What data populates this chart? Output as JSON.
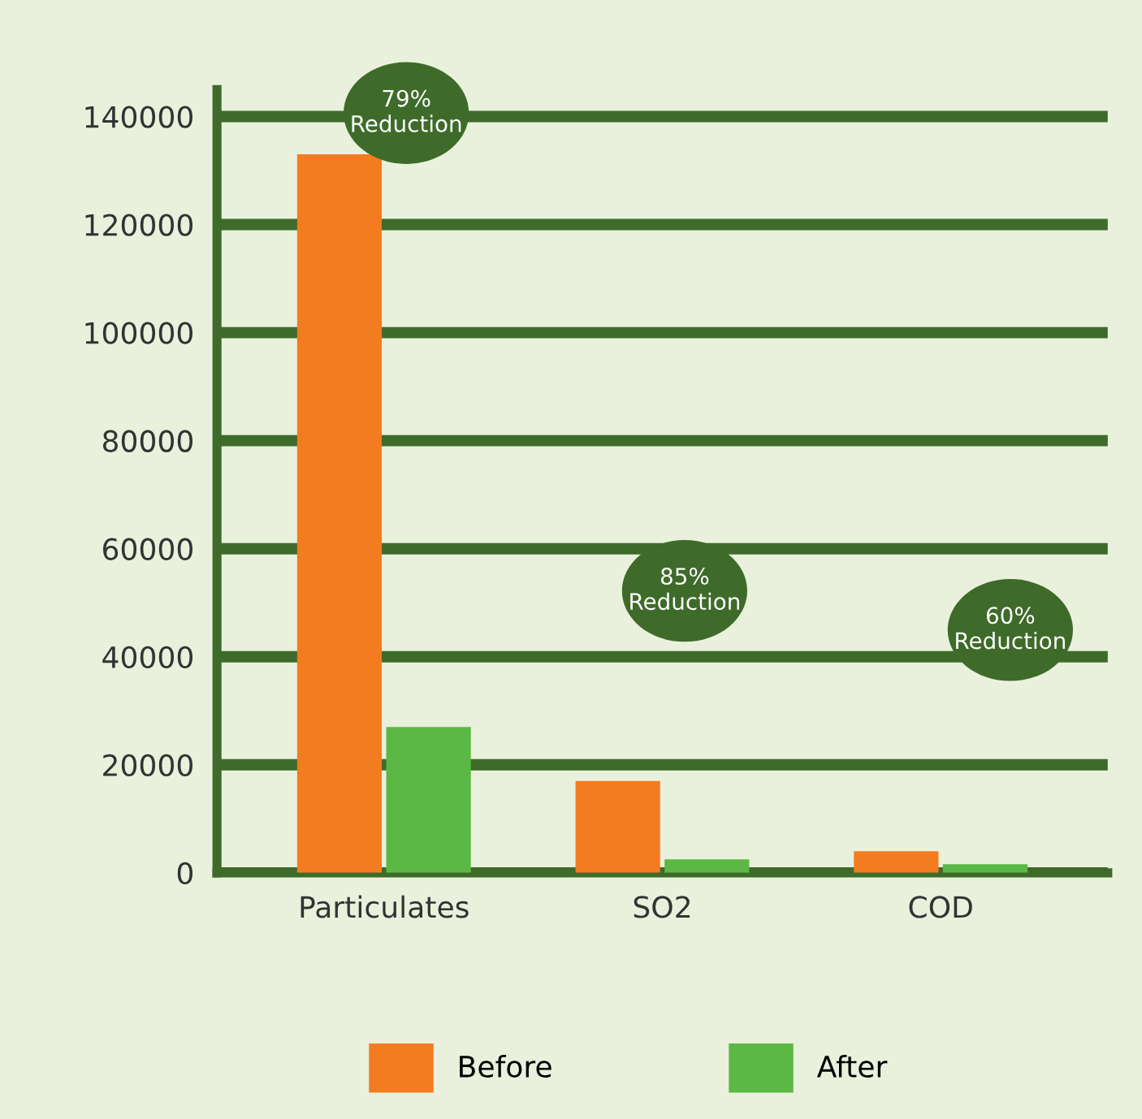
{
  "chart_data": {
    "type": "bar",
    "categories": [
      "Particulates",
      "SO2",
      "COD"
    ],
    "series": [
      {
        "name": "Before",
        "color": "#f47c20",
        "values": [
          133000,
          17000,
          4000
        ]
      },
      {
        "name": "After",
        "color": "#5cb845",
        "values": [
          27000,
          2500,
          1600
        ]
      }
    ],
    "ylim": [
      0,
      145000
    ],
    "yticks": [
      0,
      20000,
      40000,
      60000,
      80000,
      100000,
      120000,
      140000
    ],
    "grid": "y",
    "legend": "bottom",
    "annotations": [
      "79%\nReduction",
      "85%\nReduction",
      "60%\nReduction"
    ]
  }
}
